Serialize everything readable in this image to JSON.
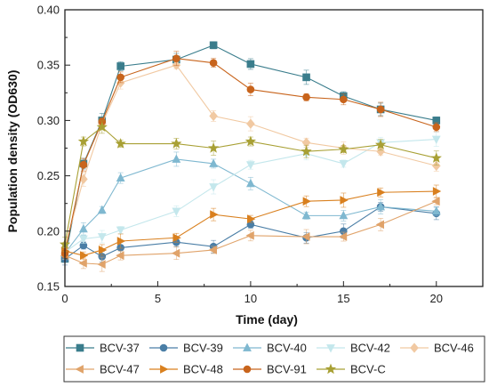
{
  "chart_data": {
    "type": "line",
    "xlabel": "Time (day)",
    "ylabel": "Population density (OD630)",
    "xlim": [
      0,
      22.5
    ],
    "ylim": [
      0.15,
      0.4
    ],
    "x_ticks": [
      "0",
      "5",
      "10",
      "15",
      "20"
    ],
    "y_ticks": [
      "0.15",
      "0.20",
      "0.25",
      "0.30",
      "0.35",
      "0.40"
    ],
    "x": [
      0,
      1,
      2,
      3,
      6,
      8,
      10,
      13,
      15,
      17,
      20
    ],
    "legend_position": "bottom",
    "series": [
      {
        "name": "BCV-37",
        "color": "#3a7d8c",
        "marker": "square",
        "values": [
          0.175,
          0.261,
          0.3,
          0.349,
          0.355,
          0.368,
          0.351,
          0.339,
          0.322,
          0.31,
          0.3
        ]
      },
      {
        "name": "BCV-39",
        "color": "#4a7ea6",
        "marker": "circle",
        "values": [
          0.175,
          0.187,
          0.177,
          0.185,
          0.19,
          0.186,
          0.206,
          0.194,
          0.2,
          0.222,
          0.216
        ]
      },
      {
        "name": "BCV-40",
        "color": "#7fb8d0",
        "marker": "triangle-up",
        "values": [
          0.18,
          0.202,
          0.219,
          0.248,
          0.265,
          0.261,
          0.243,
          0.214,
          0.214,
          0.222,
          0.218
        ]
      },
      {
        "name": "BCV-42",
        "color": "#c4e7ec",
        "marker": "triangle-down",
        "values": [
          0.181,
          0.193,
          0.195,
          0.201,
          0.218,
          0.24,
          0.26,
          0.27,
          0.261,
          0.28,
          0.283
        ]
      },
      {
        "name": "BCV-46",
        "color": "#f1c9a2",
        "marker": "diamond",
        "values": [
          0.185,
          0.247,
          0.297,
          0.334,
          0.35,
          0.304,
          0.297,
          0.28,
          0.275,
          0.272,
          0.259
        ]
      },
      {
        "name": "BCV-47",
        "color": "#e0a36a",
        "marker": "triangle-left",
        "values": [
          0.178,
          0.171,
          0.17,
          0.178,
          0.18,
          0.183,
          0.196,
          0.195,
          0.195,
          0.206,
          0.227
        ]
      },
      {
        "name": "BCV-48",
        "color": "#d9801f",
        "marker": "triangle-right",
        "values": [
          0.182,
          0.178,
          0.183,
          0.191,
          0.194,
          0.215,
          0.211,
          0.227,
          0.228,
          0.235,
          0.236
        ]
      },
      {
        "name": "BCV-91",
        "color": "#c8641c",
        "marker": "circle",
        "values": [
          0.18,
          0.26,
          0.299,
          0.339,
          0.356,
          0.352,
          0.328,
          0.321,
          0.319,
          0.31,
          0.294
        ]
      },
      {
        "name": "BCV-C",
        "color": "#a8a034",
        "marker": "star",
        "values": [
          0.188,
          0.281,
          0.294,
          0.279,
          0.279,
          0.275,
          0.281,
          0.272,
          0.274,
          0.278,
          0.266
        ]
      }
    ]
  }
}
